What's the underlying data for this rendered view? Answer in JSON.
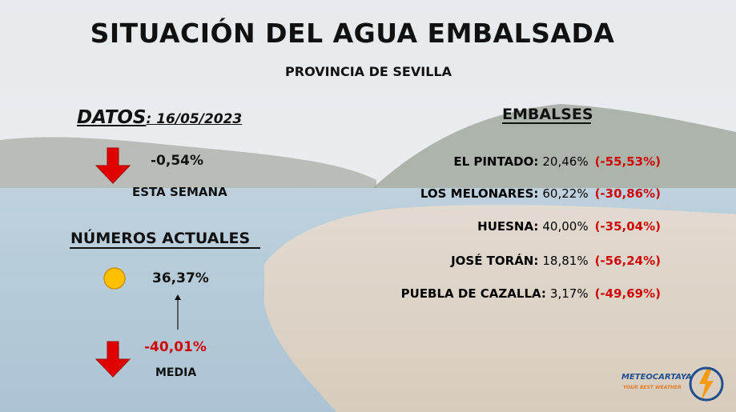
{
  "header": {
    "title": "SITUACIÓN DEL AGUA EMBALSADA",
    "subtitle": "PROVINCIA DE SEVILLA"
  },
  "left": {
    "datos_label": "DATOS",
    "datos_date": ": 16/05/2023",
    "weekly_change": "-0,54%",
    "weekly_label": "ESTA SEMANA",
    "section_title": "NÚMEROS ACTUALES",
    "current": "36,37%",
    "vs_average": "-40,01%",
    "average_label": "MEDIA"
  },
  "reservoirs": {
    "title": "EMBALSES",
    "items": [
      {
        "name": "EL PINTADO:",
        "value": "20,46%",
        "change": "(-55,53%)"
      },
      {
        "name": "LOS MELONARES:",
        "value": "60,22%",
        "change": "(-30,86%)"
      },
      {
        "name": "HUESNA:",
        "value": "40,00%",
        "change": "(-35,04%)"
      },
      {
        "name": "JOSÉ TORÁN:",
        "value": "18,81%",
        "change": "(-56,24%)"
      },
      {
        "name": "PUEBLA DE CAZALLA:",
        "value": "3,17%",
        "change": "(-49,69%)"
      }
    ]
  },
  "logo": {
    "name": "METEOCARTAYA",
    "tagline": "YOUR BEST WEATHER"
  }
}
